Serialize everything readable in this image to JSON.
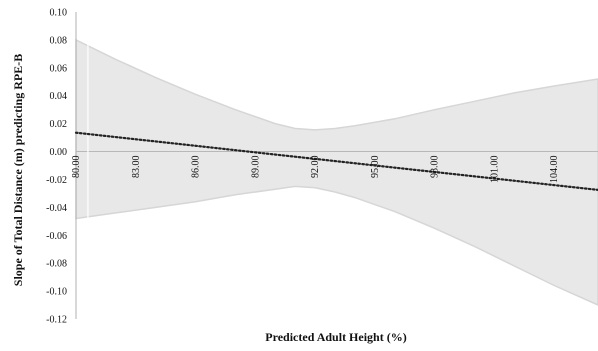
{
  "chart_data": {
    "type": "line",
    "title": "",
    "xlabel": "Predicted Adult Height (%)",
    "ylabel": "Slope of Total Distance (m) predicting RPE-B",
    "xlim": [
      80.0,
      106.2
    ],
    "ylim": [
      -0.12,
      0.1
    ],
    "x_ticks": [
      80.0,
      83.0,
      86.0,
      89.0,
      92.0,
      95.0,
      98.0,
      101.0,
      104.0
    ],
    "x_tick_labels": [
      "80.00",
      "83.00",
      "86.00",
      "89.00",
      "92.00",
      "95.00",
      "98.00",
      "101.00",
      "104.00"
    ],
    "y_ticks": [
      0.1,
      0.08,
      0.06,
      0.04,
      0.02,
      0.0,
      -0.02,
      -0.04,
      -0.06,
      -0.08,
      -0.1,
      -0.12
    ],
    "y_tick_labels": [
      "0.10",
      "0.08",
      "0.06",
      "0.04",
      "0.02",
      "0.00",
      "-0.02",
      "-0.04",
      "-0.06",
      "-0.08",
      "-0.10",
      "-0.12"
    ],
    "grid": false,
    "zero_line": true,
    "series": [
      {
        "style": "dotted",
        "color": "#222222",
        "x": [
          80.0,
          106.2
        ],
        "y": [
          0.0135,
          -0.0275
        ]
      }
    ],
    "confidence_band": {
      "color": "#e8e8e8",
      "x": [
        80.0,
        82.0,
        84.0,
        86.0,
        88.0,
        90.0,
        91.0,
        92.0,
        93.0,
        94.0,
        96.0,
        98.0,
        100.0,
        102.0,
        104.0,
        106.2
      ],
      "upper": [
        0.08,
        0.066,
        0.053,
        0.041,
        0.03,
        0.02,
        0.0165,
        0.0155,
        0.0165,
        0.0185,
        0.0235,
        0.03,
        0.036,
        0.042,
        0.047,
        0.052
      ],
      "lower": [
        -0.048,
        -0.044,
        -0.04,
        -0.036,
        -0.031,
        -0.027,
        -0.025,
        -0.026,
        -0.029,
        -0.033,
        -0.043,
        -0.055,
        -0.068,
        -0.082,
        -0.096,
        -0.11
      ]
    }
  }
}
